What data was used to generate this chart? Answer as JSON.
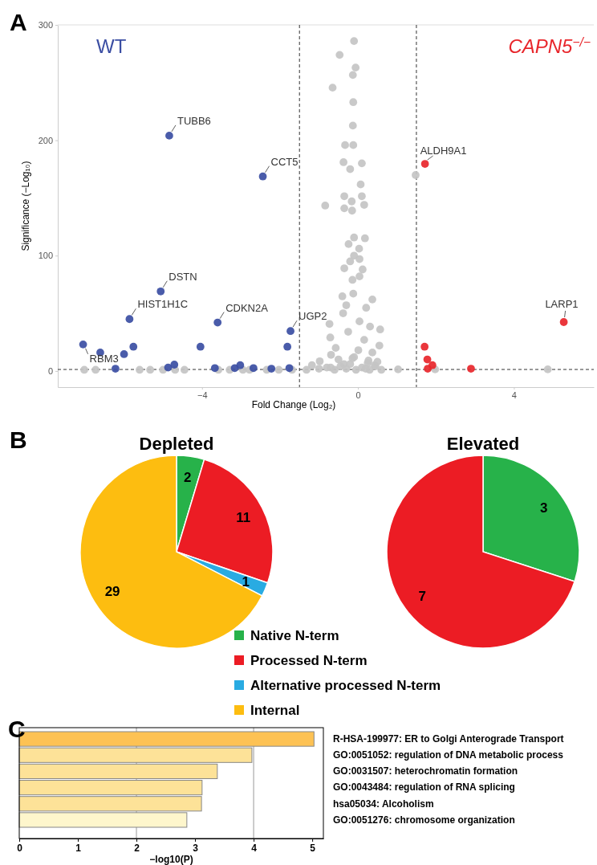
{
  "chart_data": [
    {
      "type": "scatter",
      "xlabel": "Fold Change (Log₂)",
      "ylabel": "Significance (−Log₁₀)",
      "xlim": [
        -7.7,
        6.05
      ],
      "ylim": [
        -14,
        300
      ],
      "xticks": [
        {
          "value": -4,
          "label": "−4"
        },
        0,
        4
      ],
      "yticks": [
        0,
        100,
        200,
        300
      ],
      "marker": "circle",
      "grid": false,
      "ref_lines": [
        {
          "axis": "x",
          "value": -1.5,
          "line_style": "dashed"
        },
        {
          "axis": "x",
          "value": 1.5,
          "line_style": "dashed"
        },
        {
          "axis": "y",
          "value": 1.3,
          "line_style": "dashed"
        }
      ],
      "annotations": [
        "A",
        "WT",
        "CAPN5$^{−/−}$",
        {
          "text": "TUBB6",
          "x": -4.84,
          "y": 204
        },
        {
          "text": "CCT5",
          "x": -2.44,
          "y": 168.6
        },
        {
          "text": "DSTN",
          "x": -5.06,
          "y": 69
        },
        {
          "text": "HIST1H1C",
          "x": -5.86,
          "y": 45
        },
        {
          "text": "CDKN2A",
          "x": -3.6,
          "y": 42
        },
        {
          "text": "UGP2",
          "x": -1.73,
          "y": 34.6
        },
        {
          "text": "RBM3",
          "x": -7.05,
          "y": 23
        },
        {
          "text": "ALDH9A1",
          "x": 1.72,
          "y": 179.5
        },
        {
          "text": "LARP1",
          "x": 5.28,
          "y": 42.4
        }
      ],
      "series": [
        {
          "color": "#c4c4c4",
          "x": [
            -0.1,
            -0.47,
            -0.06,
            -0.13,
            -0.65,
            -0.12,
            -0.13,
            -0.33,
            -0.12,
            -0.37,
            0.1,
            -0.2,
            1.48,
            0.07,
            -0.35,
            0.1,
            -0.16,
            0.16,
            -0.84,
            -0.35,
            -0.15,
            -0.1,
            0.18,
            -0.24,
            0.03,
            -0.1,
            0.04,
            -0.2,
            -0.35,
            0.12,
            -0.14,
            0.04,
            -0.4,
            -0.12,
            0.37,
            -0.3,
            0.21,
            -0.73,
            0.57,
            -0.71,
            0.55,
            -0.38,
            0.04,
            0.31,
            -0.25,
            0.16,
            -0.57,
            0.01,
            0.37,
            -0.69,
            -0.14,
            0.27,
            -0.98,
            -1.18,
            -0.36,
            0.43,
            1.03,
            1.98,
            4.87,
            -7.02,
            -6.73,
            -5.6,
            -5.33,
            -5.0,
            -4.69,
            -4.45,
            -3.58,
            -3.29,
            -2.95,
            -2.78,
            -2.34,
            -2.03,
            -1.69,
            -1.32,
            -1.0,
            -0.8,
            -0.6,
            -0.45,
            -0.3,
            -0.2,
            -0.05,
            0.1,
            0.2,
            0.3,
            0.45,
            0.6,
            -0.5,
            -0.1,
            0.25,
            -0.7,
            0.5
          ],
          "values": [
            286,
            274,
            263,
            256.6,
            245.6,
            233,
            212.7,
            195.8,
            195.8,
            181,
            180,
            175,
            169.8,
            161.7,
            151.5,
            151.5,
            147,
            144,
            143.4,
            141,
            139,
            115.7,
            115,
            110,
            106,
            100,
            97,
            95,
            89,
            88,
            79,
            82,
            64.7,
            67,
            62,
            57,
            54.8,
            40.8,
            36,
            29,
            22,
            50,
            43,
            38.5,
            34,
            27,
            20,
            18,
            16,
            14,
            11,
            9,
            8.4,
            5,
            6,
            5,
            1.4,
            1.4,
            1.4,
            1,
            1,
            1,
            1,
            1,
            1,
            1,
            1,
            1,
            1,
            1,
            1,
            1,
            1,
            1,
            2,
            3,
            1,
            4,
            2,
            6,
            1,
            3,
            2,
            1,
            4,
            1,
            10,
            12,
            7,
            3,
            8
          ]
        },
        {
          "color": "#3b4ea3",
          "x": [
            -4.84,
            -2.44,
            -5.06,
            -5.86,
            -3.6,
            -1.73,
            -7.05,
            -6.61,
            -6.0,
            -5.76,
            -4.04,
            -1.81,
            -6.22,
            -4.87,
            -4.71,
            -3.67,
            -3.16,
            -3.02,
            -2.68,
            -2.22,
            -1.76
          ],
          "values": [
            204,
            168.6,
            69,
            45,
            42,
            34.6,
            23,
            16,
            14.6,
            21,
            21,
            21,
            2,
            3,
            5.5,
            2.5,
            2.5,
            5,
            2.5,
            2,
            2.5
          ]
        },
        {
          "color": "#e8262b",
          "x": [
            1.72,
            5.28,
            1.71,
            1.78,
            1.79,
            1.91,
            2.9
          ],
          "values": [
            179.5,
            42.4,
            21,
            10,
            2,
            5,
            2
          ]
        }
      ]
    },
    {
      "type": "pie",
      "title": "Depleted",
      "categories": [
        "Native N-term",
        "Processed N-term",
        "Alternative processed N-term",
        "Internal"
      ],
      "values": [
        2,
        11,
        1,
        29
      ],
      "colors": [
        "#27b24a",
        "#ec1c24",
        "#29abe2",
        "#fdbd10"
      ],
      "data_labels": true,
      "legend": "bottom right",
      "annotations": [
        "B"
      ]
    },
    {
      "type": "pie",
      "title": "Elevated",
      "categories": [
        null,
        null
      ],
      "values": [
        3,
        7
      ],
      "colors": [
        "#27b24a",
        "#ec1c24"
      ],
      "data_labels": true
    },
    {
      "type": "bar",
      "orientation": "horizontal",
      "xlabel": "−log10(P)",
      "categories": [
        "R-HSA-199977: ER to Golgi Anterograde Transport",
        "GO:0051052: regulation of DNA metabolic process",
        "GO:0031507: heterochromatin formation",
        "GO:0043484: regulation of RNA splicing",
        "hsa05034: Alcoholism",
        "GO:0051276: chromosome organization"
      ],
      "values": [
        5.03,
        3.97,
        3.38,
        3.12,
        3.11,
        2.86
      ],
      "colors": [
        "#fdc254",
        "#fde298",
        "#fde298",
        "#fde298",
        "#fde298",
        "#fef6cc"
      ],
      "xlim": [
        0,
        5.19
      ],
      "xticks": [
        0,
        1,
        2,
        3,
        4,
        5
      ],
      "ref_lines": [
        {
          "axis": "x",
          "value": 2,
          "color": "#bbbbbb"
        },
        {
          "axis": "x",
          "value": 4,
          "color": "#bbbbbb"
        }
      ],
      "annotations": [
        "C"
      ]
    }
  ]
}
